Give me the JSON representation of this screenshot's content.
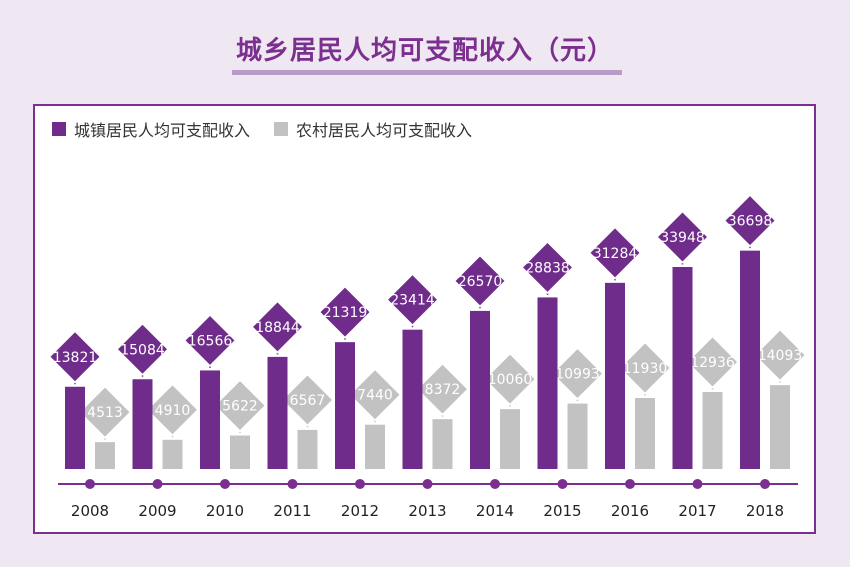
{
  "title": "城乡居民人均可支配收入（元）",
  "colors": {
    "urban": "#6f2c8b",
    "rural": "#c2c2c2",
    "axis": "#7b2f8e"
  },
  "chart_data": {
    "type": "bar",
    "title": "城乡居民人均可支配收入（元）",
    "categories": [
      "2008",
      "2009",
      "2010",
      "2011",
      "2012",
      "2013",
      "2014",
      "2015",
      "2016",
      "2017",
      "2018"
    ],
    "series": [
      {
        "name": "城镇居民人均可支配收入",
        "values": [
          13821,
          15084,
          16566,
          18844,
          21319,
          23414,
          26570,
          28838,
          31284,
          33948,
          36698
        ]
      },
      {
        "name": "农村居民人均可支配收入",
        "values": [
          4513,
          4910,
          5622,
          6567,
          7440,
          8372,
          10060,
          10993,
          11930,
          12936,
          14093
        ]
      }
    ],
    "legend": "top-left"
  }
}
